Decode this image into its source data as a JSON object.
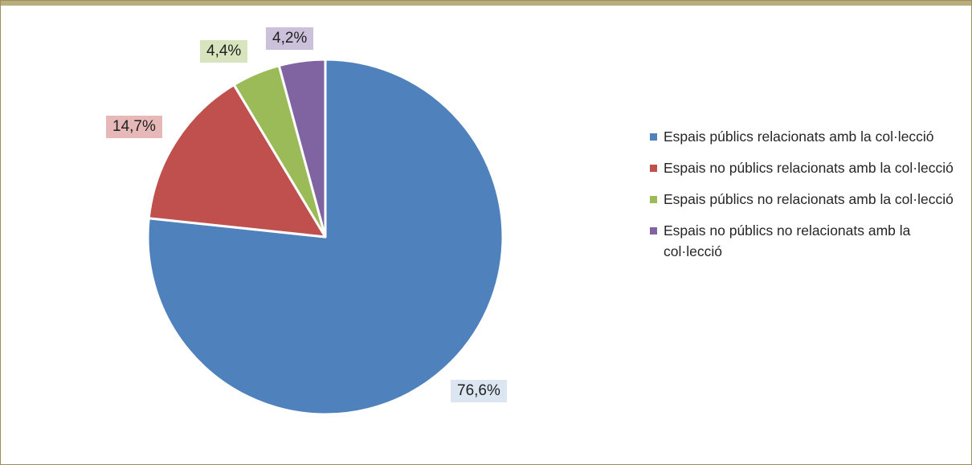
{
  "chart_data": {
    "type": "pie",
    "title": "",
    "start_angle_deg": 0,
    "direction": "clockwise",
    "slices": [
      {
        "label": "Espais públics relacionats amb la col·lecció",
        "value": 76.6,
        "value_label": "76,6%",
        "color": "#4f81bd",
        "label_bg": "#dce6f2"
      },
      {
        "label": "Espais no públics relacionats amb la col·lecció",
        "value": 14.7,
        "value_label": "14,7%",
        "color": "#c0504d",
        "label_bg": "#e6b9b8"
      },
      {
        "label": "Espais públics no relacionats amb la col·lecció",
        "value": 4.4,
        "value_label": "4,4%",
        "color": "#9bbb59",
        "label_bg": "#d7e4bd"
      },
      {
        "label": "Espais no públics no relacionats amb la col·lecció",
        "value": 4.2,
        "value_label": "4,2%",
        "color": "#8064a2",
        "label_bg": "#ccc1da"
      }
    ],
    "legend_position": "right"
  }
}
